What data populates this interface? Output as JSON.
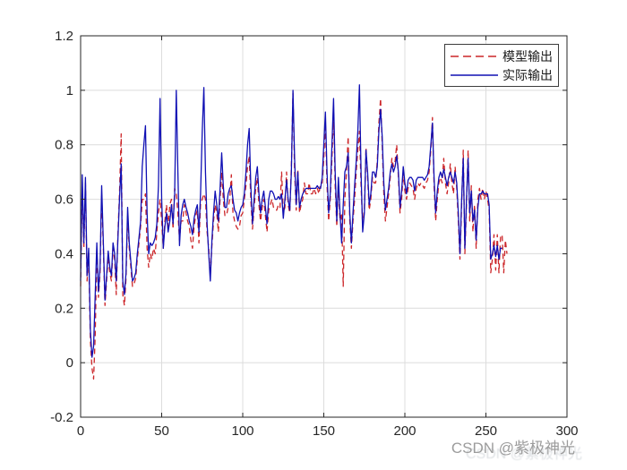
{
  "watermark": {
    "text": "CSDN @紫极神光",
    "color": "#9c9c9c",
    "faint_color": "#a8b0b8"
  },
  "chart_data": {
    "type": "line",
    "title": "",
    "xlabel": "",
    "ylabel": "",
    "xlim": [
      0,
      300
    ],
    "ylim": [
      -0.2,
      1.2
    ],
    "grid": true,
    "grid_color": "#dcdcdc",
    "axis_color": "#262626",
    "background": "#ffffff",
    "xticks": [
      0,
      50,
      100,
      150,
      200,
      250,
      300
    ],
    "xtick_labels": [
      "0",
      "50",
      "100",
      "150",
      "200",
      "250",
      "300"
    ],
    "yticks": [
      -0.2,
      0,
      0.2,
      0.4,
      0.6,
      0.8,
      1,
      1.2
    ],
    "ytick_labels": [
      "-0.2",
      "0",
      "0.2",
      "0.4",
      "0.6",
      "0.8",
      "1",
      "1.2"
    ],
    "legend": {
      "position": "top-right",
      "border_color": "#3c3c3c",
      "background": "#ffffff"
    },
    "series": [
      {
        "label": "模型输出",
        "color": "#cc2629",
        "style": "dashed",
        "x_start": 0,
        "x_step": 1,
        "values": [
          0.28,
          0.66,
          0.42,
          0.66,
          0.3,
          0.4,
          0.08,
          -0.02,
          -0.06,
          0.1,
          0.42,
          0.24,
          0.33,
          0.62,
          0.43,
          0.21,
          0.3,
          0.39,
          0.33,
          0.3,
          0.42,
          0.38,
          0.25,
          0.47,
          0.62,
          0.84,
          0.25,
          0.21,
          0.31,
          0.54,
          0.42,
          0.35,
          0.28,
          0.29,
          0.31,
          0.38,
          0.44,
          0.5,
          0.6,
          0.6,
          0.62,
          0.42,
          0.35,
          0.4,
          0.38,
          0.42,
          0.4,
          0.48,
          0.55,
          0.6,
          0.52,
          0.42,
          0.52,
          0.58,
          0.5,
          0.58,
          0.6,
          0.49,
          0.64,
          0.62,
          0.55,
          0.45,
          0.52,
          0.52,
          0.58,
          0.55,
          0.52,
          0.5,
          0.45,
          0.42,
          0.5,
          0.54,
          0.56,
          0.44,
          0.58,
          0.6,
          0.62,
          0.6,
          0.48,
          0.42,
          0.32,
          0.43,
          0.52,
          0.58,
          0.55,
          0.48,
          0.6,
          0.7,
          0.6,
          0.54,
          0.54,
          0.57,
          0.6,
          0.69,
          0.55,
          0.52,
          0.5,
          0.49,
          0.5,
          0.54,
          0.55,
          0.6,
          0.65,
          0.72,
          0.76,
          0.6,
          0.49,
          0.57,
          0.64,
          0.68,
          0.58,
          0.52,
          0.57,
          0.6,
          0.54,
          0.48,
          0.56,
          0.58,
          0.6,
          0.57,
          0.56,
          0.56,
          0.58,
          0.57,
          0.7,
          0.55,
          0.57,
          0.7,
          0.58,
          0.55,
          0.72,
          0.99,
          0.7,
          0.56,
          0.71,
          0.55,
          0.58,
          0.6,
          0.66,
          0.62,
          0.62,
          0.66,
          0.62,
          0.62,
          0.64,
          0.62,
          0.64,
          0.62,
          0.66,
          0.66,
          0.75,
          0.88,
          0.65,
          0.52,
          0.6,
          0.75,
          0.92,
          0.65,
          0.5,
          0.66,
          0.52,
          0.55,
          0.28,
          0.6,
          0.7,
          0.83,
          0.52,
          0.42,
          0.52,
          0.6,
          0.7,
          0.78,
          0.85,
          0.65,
          0.5,
          0.57,
          0.79,
          0.68,
          0.56,
          0.6,
          0.68,
          0.66,
          0.66,
          0.74,
          0.88,
          0.97,
          0.8,
          0.62,
          0.52,
          0.57,
          0.62,
          0.68,
          0.75,
          0.72,
          0.74,
          0.8,
          0.68,
          0.55,
          0.6,
          0.7,
          0.63,
          0.6,
          0.64,
          0.66,
          0.65,
          0.64,
          0.6,
          0.64,
          0.66,
          0.65,
          0.66,
          0.65,
          0.64,
          0.66,
          0.67,
          0.7,
          0.78,
          0.9,
          0.65,
          0.52,
          0.6,
          0.66,
          0.68,
          0.66,
          0.75,
          0.66,
          0.62,
          0.66,
          0.73,
          0.66,
          0.62,
          0.72,
          0.64,
          0.52,
          0.38,
          0.58,
          0.78,
          0.4,
          0.58,
          0.78,
          0.52,
          0.65,
          0.48,
          0.58,
          0.42,
          0.6,
          0.64,
          0.6,
          0.64,
          0.6,
          0.63,
          0.6,
          0.56,
          0.33,
          0.38,
          0.47,
          0.34,
          0.47,
          0.33,
          0.46,
          0.47,
          0.33,
          0.45,
          0.4
        ]
      },
      {
        "label": "实际输出",
        "color": "#1010b4",
        "style": "solid",
        "x_start": 0,
        "x_step": 1,
        "values": [
          0.3,
          0.69,
          0.44,
          0.68,
          0.32,
          0.42,
          0.12,
          0.02,
          0.06,
          0.25,
          0.44,
          0.26,
          0.35,
          0.65,
          0.45,
          0.23,
          0.32,
          0.41,
          0.35,
          0.32,
          0.44,
          0.4,
          0.3,
          0.45,
          0.6,
          0.73,
          0.3,
          0.25,
          0.33,
          0.57,
          0.44,
          0.37,
          0.3,
          0.31,
          0.33,
          0.4,
          0.46,
          0.52,
          0.72,
          0.8,
          0.87,
          0.55,
          0.4,
          0.44,
          0.43,
          0.44,
          0.46,
          0.51,
          0.65,
          0.97,
          0.6,
          0.42,
          0.5,
          0.55,
          0.48,
          0.52,
          0.58,
          0.51,
          0.62,
          1.0,
          0.7,
          0.43,
          0.54,
          0.58,
          0.6,
          0.57,
          0.55,
          0.52,
          0.5,
          0.47,
          0.53,
          0.56,
          0.58,
          0.48,
          0.62,
          0.85,
          1.01,
          0.7,
          0.51,
          0.4,
          0.3,
          0.45,
          0.55,
          0.63,
          0.58,
          0.52,
          0.64,
          0.77,
          0.65,
          0.57,
          0.57,
          0.62,
          0.64,
          0.65,
          0.6,
          0.56,
          0.55,
          0.52,
          0.55,
          0.57,
          0.58,
          0.62,
          0.7,
          0.8,
          0.86,
          0.65,
          0.51,
          0.6,
          0.68,
          0.72,
          0.62,
          0.55,
          0.6,
          0.63,
          0.57,
          0.51,
          0.6,
          0.63,
          0.63,
          0.62,
          0.6,
          0.6,
          0.61,
          0.6,
          0.62,
          0.53,
          0.6,
          0.67,
          0.6,
          0.56,
          0.7,
          1.0,
          0.75,
          0.58,
          0.7,
          0.57,
          0.6,
          0.62,
          0.63,
          0.64,
          0.64,
          0.64,
          0.64,
          0.64,
          0.64,
          0.64,
          0.65,
          0.64,
          0.64,
          0.68,
          0.8,
          0.92,
          0.7,
          0.55,
          0.62,
          0.8,
          0.97,
          0.7,
          0.52,
          0.68,
          0.55,
          0.44,
          0.58,
          0.7,
          0.72,
          0.77,
          0.55,
          0.44,
          0.55,
          0.65,
          0.74,
          0.85,
          1.02,
          0.7,
          0.48,
          0.55,
          0.78,
          0.7,
          0.58,
          0.62,
          0.7,
          0.7,
          0.68,
          0.72,
          0.85,
          0.93,
          0.83,
          0.66,
          0.56,
          0.6,
          0.64,
          0.7,
          0.73,
          0.7,
          0.72,
          0.76,
          0.7,
          0.57,
          0.63,
          0.72,
          0.66,
          0.62,
          0.67,
          0.68,
          0.68,
          0.67,
          0.63,
          0.67,
          0.68,
          0.68,
          0.68,
          0.68,
          0.67,
          0.68,
          0.69,
          0.72,
          0.8,
          0.88,
          0.68,
          0.55,
          0.63,
          0.68,
          0.7,
          0.68,
          0.71,
          0.68,
          0.65,
          0.68,
          0.7,
          0.68,
          0.66,
          0.7,
          0.66,
          0.55,
          0.4,
          0.6,
          0.75,
          0.42,
          0.6,
          0.75,
          0.55,
          0.63,
          0.52,
          0.56,
          0.45,
          0.57,
          0.62,
          0.62,
          0.63,
          0.62,
          0.62,
          0.62,
          0.58,
          0.38,
          0.4,
          0.43,
          0.39,
          0.43,
          0.38,
          0.42,
          0.42
        ]
      }
    ]
  }
}
